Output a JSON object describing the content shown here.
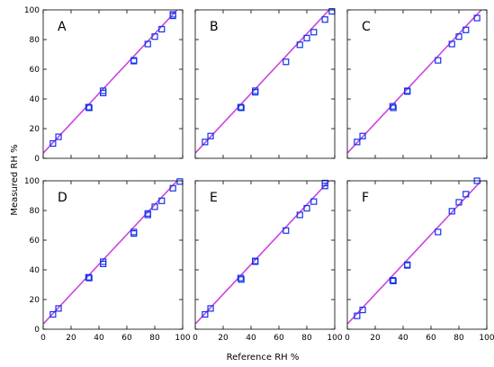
{
  "figure": {
    "xlabel": "Reference RH %",
    "ylabel": "Measured RH %"
  },
  "colors": {
    "fit_line": "#cc44dd",
    "marker": "#1133ee",
    "axes": "#000000"
  },
  "chart_data": [
    {
      "type": "scatter",
      "label": "A",
      "xlim": [
        0,
        100
      ],
      "ylim": [
        0,
        100
      ],
      "xticks": [
        "0",
        "20",
        "40",
        "60",
        "80",
        "100"
      ],
      "yticks": [
        "0",
        "20",
        "40",
        "60",
        "80",
        "100"
      ],
      "grid": false,
      "points": [
        [
          7,
          10
        ],
        [
          11,
          14.5
        ],
        [
          32.5,
          34.5
        ],
        [
          33,
          34
        ],
        [
          43,
          44
        ],
        [
          43,
          45.5
        ],
        [
          65,
          65.5
        ],
        [
          65,
          66
        ],
        [
          75,
          77
        ],
        [
          80,
          82
        ],
        [
          85,
          87
        ],
        [
          93,
          96
        ],
        [
          93,
          97
        ]
      ],
      "fit_line": [
        [
          0,
          3.5
        ],
        [
          100,
          104
        ]
      ]
    },
    {
      "type": "scatter",
      "label": "B",
      "xlim": [
        0,
        100
      ],
      "ylim": [
        0,
        100
      ],
      "xticks": [
        "0",
        "20",
        "40",
        "60",
        "80",
        "100"
      ],
      "yticks": [
        "0",
        "20",
        "40",
        "60",
        "80",
        "100"
      ],
      "grid": false,
      "points": [
        [
          7,
          11
        ],
        [
          11,
          15
        ],
        [
          32.5,
          34.5
        ],
        [
          33,
          34
        ],
        [
          43,
          44.5
        ],
        [
          43,
          45.5
        ],
        [
          65,
          65
        ],
        [
          75,
          76.5
        ],
        [
          80,
          81
        ],
        [
          85,
          85
        ],
        [
          93,
          93.5
        ],
        [
          98,
          99
        ]
      ],
      "fit_line": [
        [
          0,
          3.5
        ],
        [
          100,
          104
        ]
      ]
    },
    {
      "type": "scatter",
      "label": "C",
      "xlim": [
        0,
        100
      ],
      "ylim": [
        0,
        100
      ],
      "xticks": [
        "0",
        "20",
        "40",
        "60",
        "80",
        "100"
      ],
      "yticks": [
        "0",
        "20",
        "40",
        "60",
        "80",
        "100"
      ],
      "grid": false,
      "points": [
        [
          7,
          11
        ],
        [
          11,
          15
        ],
        [
          32.5,
          35
        ],
        [
          33,
          34
        ],
        [
          43,
          45
        ],
        [
          43,
          45.5
        ],
        [
          65,
          66
        ],
        [
          75,
          77
        ],
        [
          80,
          82
        ],
        [
          85,
          86.5
        ],
        [
          93,
          94.5
        ]
      ],
      "fit_line": [
        [
          0,
          3.5
        ],
        [
          100,
          104
        ]
      ]
    },
    {
      "type": "scatter",
      "label": "D",
      "xlim": [
        0,
        100
      ],
      "ylim": [
        0,
        100
      ],
      "xticks": [
        "0",
        "20",
        "40",
        "60",
        "80",
        "100"
      ],
      "yticks": [
        "0",
        "20",
        "40",
        "60",
        "80",
        "100"
      ],
      "grid": false,
      "points": [
        [
          7,
          10
        ],
        [
          11,
          14
        ],
        [
          32.5,
          35
        ],
        [
          33,
          34.5
        ],
        [
          43,
          44
        ],
        [
          43,
          45.5
        ],
        [
          65,
          64.5
        ],
        [
          65,
          65.5
        ],
        [
          75,
          77
        ],
        [
          75,
          78
        ],
        [
          80,
          82.5
        ],
        [
          85,
          86.5
        ],
        [
          93,
          95
        ],
        [
          98,
          99.5
        ]
      ],
      "fit_line": [
        [
          0,
          3.5
        ],
        [
          100,
          104
        ]
      ]
    },
    {
      "type": "scatter",
      "label": "E",
      "xlim": [
        0,
        100
      ],
      "ylim": [
        0,
        100
      ],
      "xticks": [
        "0",
        "20",
        "40",
        "60",
        "80",
        "100"
      ],
      "yticks": [
        "0",
        "20",
        "40",
        "60",
        "80",
        "100"
      ],
      "grid": false,
      "points": [
        [
          7,
          10
        ],
        [
          11,
          14
        ],
        [
          32.5,
          34.5
        ],
        [
          33,
          33.5
        ],
        [
          43,
          45.5
        ],
        [
          43,
          46
        ],
        [
          65,
          66.5
        ],
        [
          75,
          77
        ],
        [
          80,
          81.5
        ],
        [
          85,
          86
        ],
        [
          93,
          96.5
        ],
        [
          93,
          98.5
        ]
      ],
      "fit_line": [
        [
          0,
          3.5
        ],
        [
          100,
          104
        ]
      ]
    },
    {
      "type": "scatter",
      "label": "F",
      "xlim": [
        0,
        100
      ],
      "ylim": [
        0,
        100
      ],
      "xticks": [
        "0",
        "20",
        "40",
        "60",
        "80",
        "100"
      ],
      "yticks": [
        "0",
        "20",
        "40",
        "60",
        "80",
        "100"
      ],
      "grid": false,
      "points": [
        [
          7,
          9
        ],
        [
          11,
          13
        ],
        [
          32.5,
          33
        ],
        [
          33,
          32.5
        ],
        [
          43,
          43
        ],
        [
          43,
          43.5
        ],
        [
          65,
          65.5
        ],
        [
          75,
          79.5
        ],
        [
          80,
          85.5
        ],
        [
          85,
          91
        ],
        [
          93,
          100
        ]
      ],
      "fit_line": [
        [
          0,
          3.5
        ],
        [
          100,
          104
        ]
      ]
    }
  ]
}
